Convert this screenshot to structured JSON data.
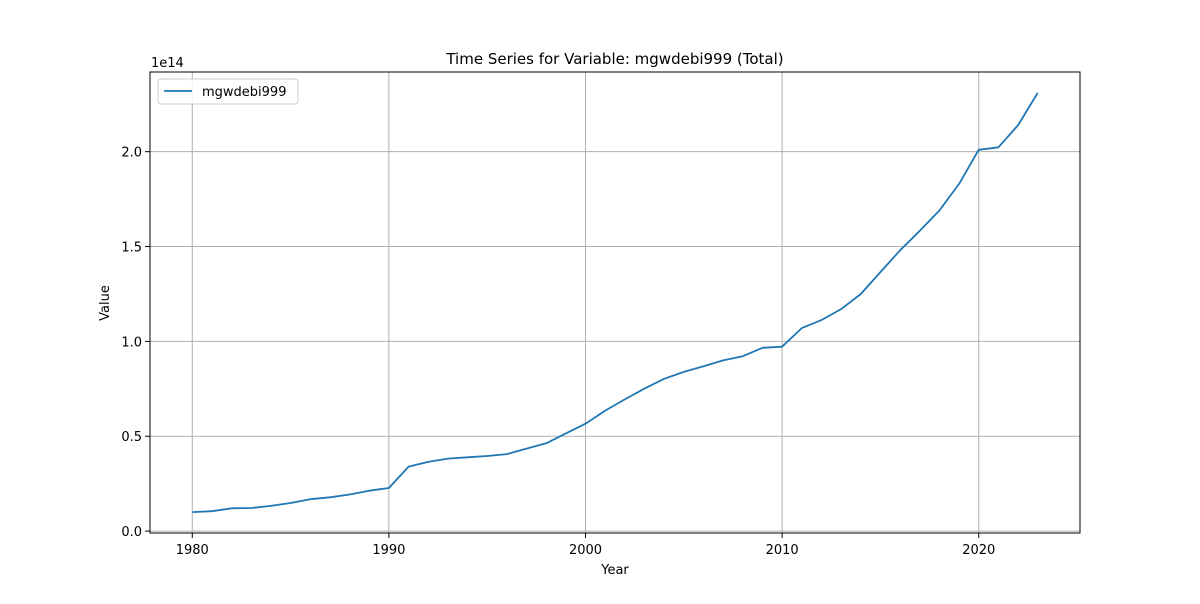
{
  "chart_data": {
    "type": "line",
    "title": "Time Series for Variable: mgwdebi999 (Total)",
    "xlabel": "Year",
    "ylabel": "Value",
    "y_offset_label": "1e14",
    "xlim": [
      1977.85,
      2025.15
    ],
    "ylim": [
      -0.01,
      2.42
    ],
    "y_scale_note": "values in units of 1e14",
    "grid": true,
    "legend_position": "top-left",
    "x_ticks": [
      1980,
      1990,
      2000,
      2010,
      2020
    ],
    "x_tick_labels": [
      "1980",
      "1990",
      "2000",
      "2010",
      "2020"
    ],
    "y_ticks": [
      0.0,
      0.5,
      1.0,
      1.5,
      2.0
    ],
    "y_tick_labels": [
      "0.0",
      "0.5",
      "1.0",
      "1.5",
      "2.0"
    ],
    "colors": {
      "series": "#1f77b4",
      "grid": "#b0b0b0",
      "axes": "#000000"
    },
    "series": [
      {
        "name": "mgwdebi999",
        "x": [
          1980,
          1981,
          1982,
          1983,
          1984,
          1985,
          1986,
          1987,
          1988,
          1989,
          1990,
          1991,
          1992,
          1993,
          1994,
          1995,
          1996,
          1997,
          1998,
          1999,
          2000,
          2001,
          2002,
          2003,
          2004,
          2005,
          2006,
          2007,
          2008,
          2009,
          2010,
          2011,
          2012,
          2013,
          2014,
          2015,
          2016,
          2017,
          2018,
          2019,
          2020,
          2021,
          2022,
          2023
        ],
        "values": [
          0.1,
          0.105,
          0.12,
          0.122,
          0.133,
          0.148,
          0.168,
          0.178,
          0.193,
          0.213,
          0.227,
          0.34,
          0.365,
          0.382,
          0.389,
          0.396,
          0.406,
          0.435,
          0.463,
          0.515,
          0.566,
          0.635,
          0.694,
          0.751,
          0.803,
          0.839,
          0.869,
          0.9,
          0.922,
          0.966,
          0.972,
          1.07,
          1.112,
          1.17,
          1.25,
          1.365,
          1.48,
          1.583,
          1.69,
          1.83,
          2.01,
          2.023,
          2.14,
          2.31
        ]
      }
    ]
  }
}
